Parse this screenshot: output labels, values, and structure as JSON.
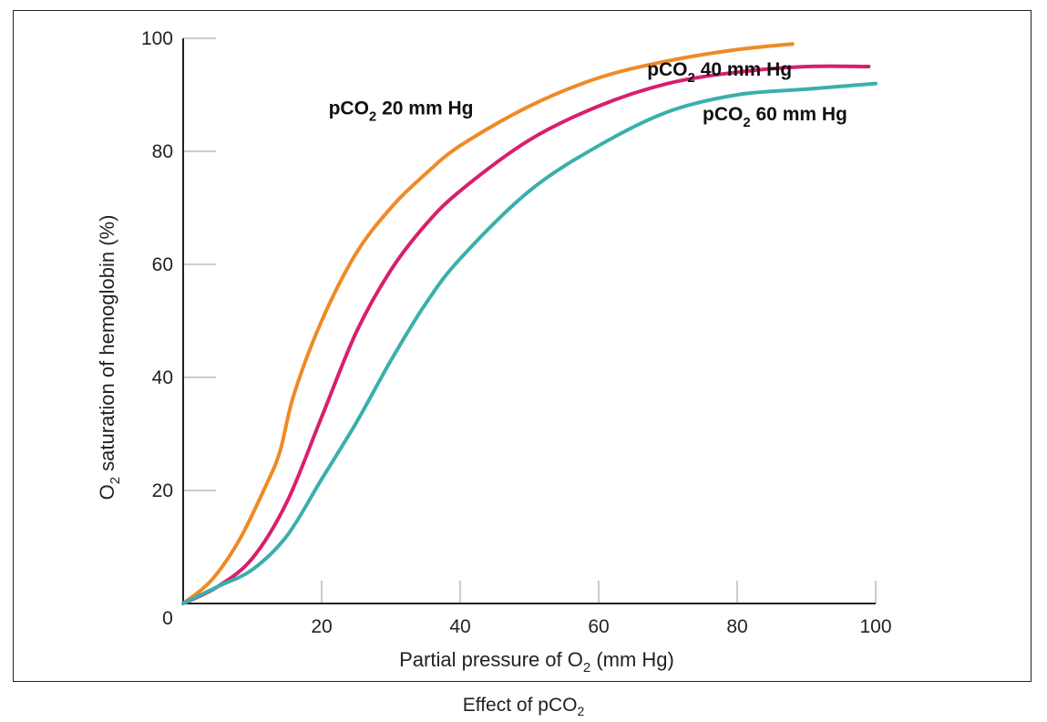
{
  "chart_data": {
    "type": "line",
    "title": "",
    "xlabel": {
      "prefix": "Partial pressure of O",
      "sub": "2",
      "suffix": " (mm Hg)"
    },
    "ylabel": {
      "prefix": "O",
      "sub": "2",
      "suffix": " saturation of hemoglobin (%)"
    },
    "xlim": [
      0,
      100
    ],
    "ylim": [
      0,
      100
    ],
    "xticks": [
      20,
      40,
      60,
      80,
      100
    ],
    "yticks": [
      20,
      40,
      60,
      80,
      100
    ],
    "origin_label": "0",
    "grid": false,
    "series": [
      {
        "label": {
          "prefix": "pCO",
          "sub": "2",
          "suffix": " 20 mm Hg"
        },
        "color": "#ef8a25",
        "x": [
          0,
          4,
          8,
          12,
          14,
          16,
          20,
          25,
          30,
          35,
          40,
          50,
          60,
          70,
          80,
          88
        ],
        "y": [
          0,
          4,
          11,
          21,
          27,
          37,
          50,
          62,
          70,
          76,
          81,
          88,
          93,
          96,
          98,
          99
        ]
      },
      {
        "label": {
          "prefix": "pCO",
          "sub": "2",
          "suffix": " 40 mm Hg"
        },
        "color": "#d81f6e",
        "x": [
          0,
          5,
          10,
          15,
          20,
          25,
          30,
          35,
          40,
          50,
          60,
          70,
          80,
          90,
          99
        ],
        "y": [
          0,
          3,
          8,
          18,
          33,
          48,
          59,
          67,
          73,
          82,
          88,
          92,
          94,
          95,
          95
        ]
      },
      {
        "label": {
          "prefix": "pCO",
          "sub": "2",
          "suffix": " 60 mm Hg"
        },
        "color": "#3aafad",
        "x": [
          0,
          5,
          10,
          15,
          20,
          25,
          30,
          35,
          40,
          50,
          60,
          70,
          80,
          90,
          100
        ],
        "y": [
          0,
          3,
          6,
          12,
          22,
          32,
          43,
          53,
          61,
          73,
          81,
          87,
          90,
          91,
          92
        ]
      }
    ]
  },
  "caption": {
    "prefix": "Effect of pCO",
    "sub": "2"
  }
}
